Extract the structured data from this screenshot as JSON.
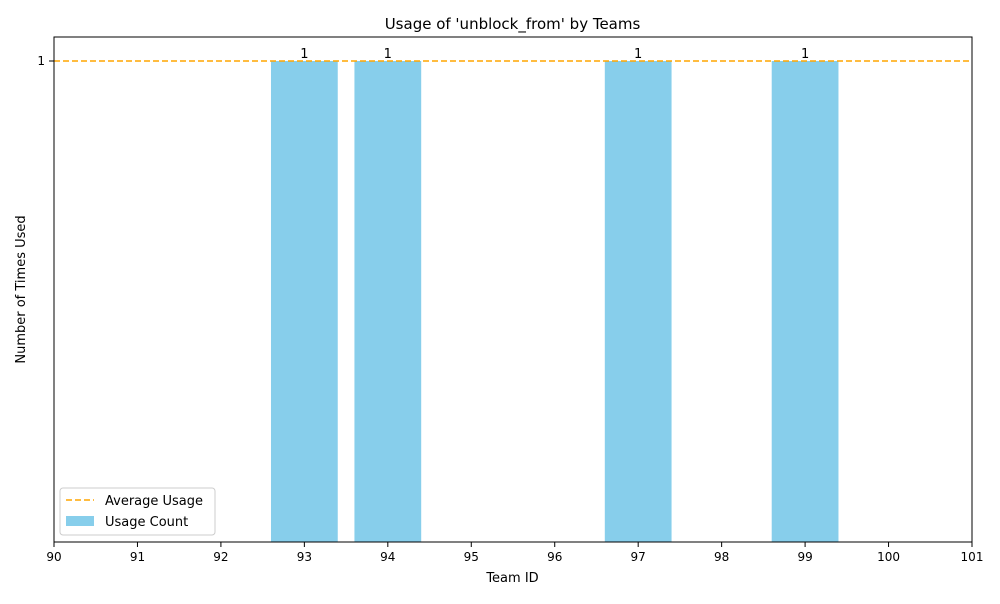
{
  "chart_data": {
    "type": "bar",
    "title": "Usage of 'unblock_from' by Teams",
    "xlabel": "Team ID",
    "ylabel": "Number of Times Used",
    "x_ticks": [
      "90",
      "91",
      "92",
      "93",
      "94",
      "95",
      "96",
      "97",
      "98",
      "99",
      "100",
      "101"
    ],
    "y_ticks": [
      "1"
    ],
    "xlim": [
      90,
      101
    ],
    "ylim": [
      0,
      1
    ],
    "grid": false,
    "legend_position": "lower-left",
    "series": [
      {
        "name": "Usage Count",
        "color": "#87CEEB",
        "x": [
          93,
          94,
          97,
          99
        ],
        "values": [
          1,
          1,
          1,
          1
        ],
        "data_labels": [
          "1",
          "1",
          "1",
          "1"
        ]
      }
    ],
    "reference_line": {
      "name": "Average Usage",
      "value": 1,
      "color": "#FFA500",
      "style": "dashed"
    }
  }
}
